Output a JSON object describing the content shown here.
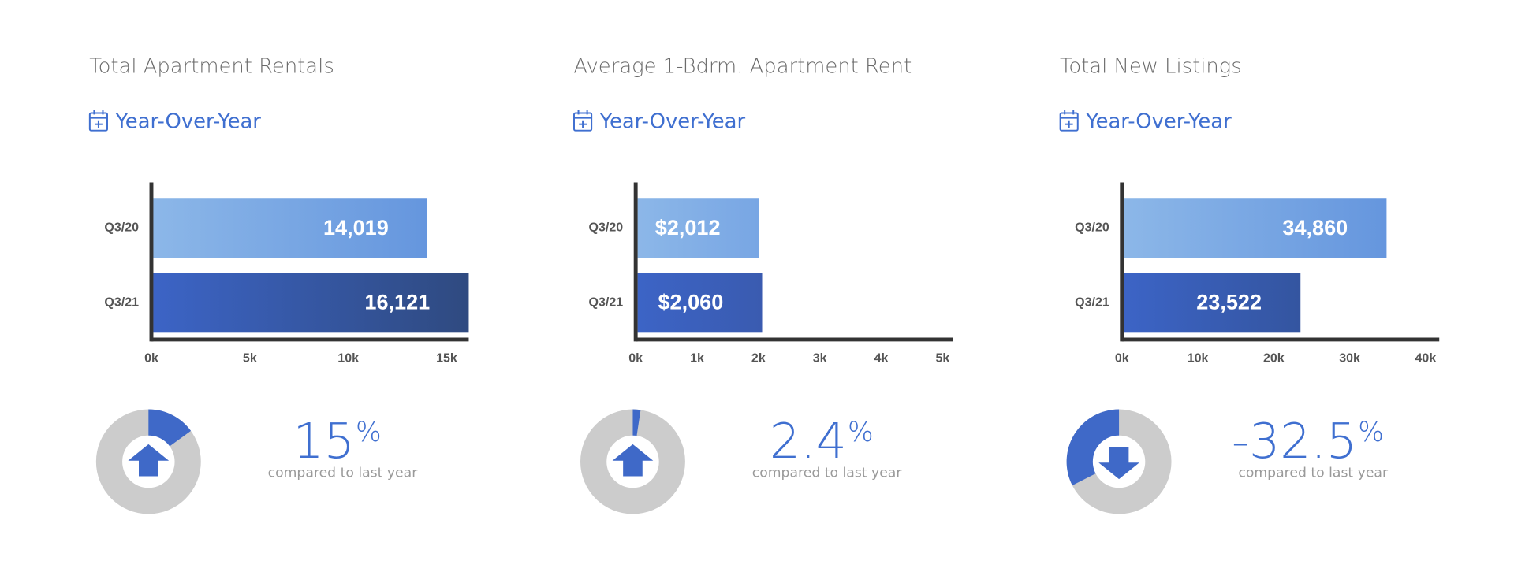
{
  "chart_data": [
    {
      "type": "bar",
      "title": "Total Apartment Rentals",
      "subtitle": "Year-Over-Year",
      "categories": [
        "Q3/20",
        "Q3/21"
      ],
      "values": [
        14019,
        16121
      ],
      "value_labels": [
        "14,019",
        "16,121"
      ],
      "colors": [
        [
          "#8cb7e8",
          "#6596de"
        ],
        [
          "#3c64c6",
          "#2f4a80"
        ]
      ],
      "xlim": [
        0,
        16121
      ],
      "xticks": [
        {
          "value": 0,
          "label": "0k"
        },
        {
          "value": 5000,
          "label": "5k"
        },
        {
          "value": 10000,
          "label": "10k"
        },
        {
          "value": 15000,
          "label": "15k"
        }
      ],
      "change": 15,
      "change_unit": "%",
      "change_caption": "compared to last year",
      "change_color": "#3f69c8"
    },
    {
      "type": "bar",
      "title": "Average 1-Bdrm. Apartment Rent",
      "subtitle": "Year-Over-Year",
      "categories": [
        "Q3/20",
        "Q3/21"
      ],
      "values": [
        2012,
        2060
      ],
      "value_labels": [
        "$2,012",
        "$2,060"
      ],
      "colors": [
        [
          "#8cb7e8",
          "#78a6e4"
        ],
        [
          "#3c64c6",
          "#3a5bb0"
        ]
      ],
      "xlim": [
        0,
        5170
      ],
      "xticks": [
        {
          "value": 0,
          "label": "0k"
        },
        {
          "value": 1000,
          "label": "1k"
        },
        {
          "value": 2000,
          "label": "2k"
        },
        {
          "value": 3000,
          "label": "3k"
        },
        {
          "value": 4000,
          "label": "4k"
        },
        {
          "value": 5000,
          "label": "5k"
        }
      ],
      "change": 2.4,
      "change_unit": "%",
      "change_caption": "compared to last year",
      "change_color": "#3f69c8"
    },
    {
      "type": "bar",
      "title": "Total New Listings",
      "subtitle": "Year-Over-Year",
      "categories": [
        "Q3/20",
        "Q3/21"
      ],
      "values": [
        34860,
        23522
      ],
      "value_labels": [
        "34,860",
        "23,522"
      ],
      "colors": [
        [
          "#8cb7e8",
          "#6596de"
        ],
        [
          "#3c64c6",
          "#3455a0"
        ]
      ],
      "xlim": [
        0,
        41800
      ],
      "xticks": [
        {
          "value": 0,
          "label": "0k"
        },
        {
          "value": 10000,
          "label": "10k"
        },
        {
          "value": 20000,
          "label": "20k"
        },
        {
          "value": 30000,
          "label": "30k"
        },
        {
          "value": 40000,
          "label": "40k"
        }
      ],
      "change": -32.5,
      "change_unit": "%",
      "change_caption": "compared to last year",
      "change_color": "#3f69c8"
    }
  ]
}
